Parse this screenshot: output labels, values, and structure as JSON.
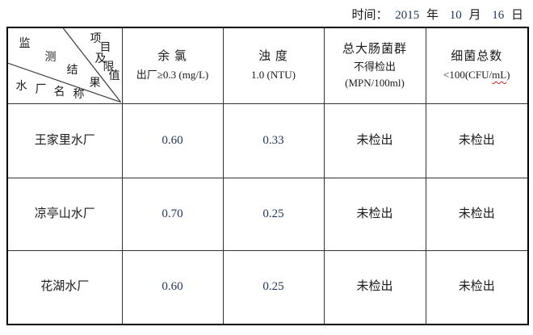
{
  "header": {
    "time_label": "时间：",
    "year": "2015",
    "year_unit": "年",
    "month": "10",
    "month_unit": "月",
    "day": "16",
    "day_unit": "日"
  },
  "corner": {
    "top": "项目及限值",
    "middle": "监测结果",
    "bottom": "水厂名称"
  },
  "columns": {
    "chlorine": {
      "name": "余 氯",
      "limit": "出厂≥0.3 (mg/L)"
    },
    "turbidity": {
      "name": "浊 度",
      "limit": "1.0 (NTU)"
    },
    "coliform": {
      "name": "总大肠菌群",
      "limit": "不得检出",
      "unit": "(MPN/100ml)"
    },
    "bacteria": {
      "name": "细菌总数",
      "limit_pre": "<100(CFU/",
      "limit_wavy": "mL",
      "limit_post": ")"
    }
  },
  "rows": [
    {
      "plant": "王家里水厂",
      "chlorine": "0.60",
      "turbidity": "0.33",
      "coliform": "未检出",
      "bacteria": "未检出"
    },
    {
      "plant": "凉亭山水厂",
      "chlorine": "0.70",
      "turbidity": "0.25",
      "coliform": "未检出",
      "bacteria": "未检出"
    },
    {
      "plant": "花湖水厂",
      "chlorine": "0.60",
      "turbidity": "0.25",
      "coliform": "未检出",
      "bacteria": "未检出"
    }
  ],
  "colors": {
    "text": "#1a1a1a",
    "number_text": "#25355e",
    "squiggle": "#cc2222",
    "border": "#000000"
  }
}
